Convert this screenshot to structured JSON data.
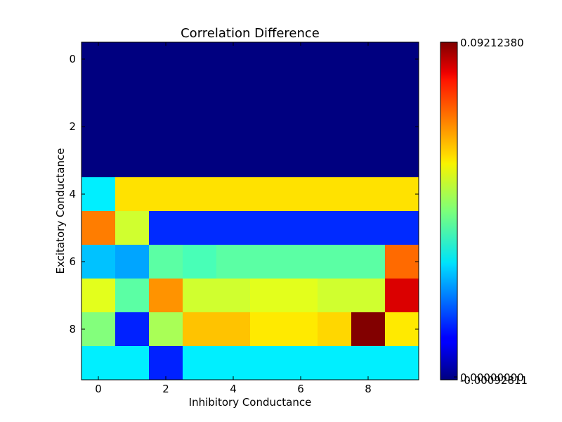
{
  "chart_data": {
    "type": "heatmap",
    "title": "Correlation Difference",
    "xlabel": "Inhibitory Conductance",
    "ylabel": "Excitatory Conductance",
    "x_ticks": [
      0,
      2,
      4,
      6,
      8
    ],
    "y_ticks": [
      0,
      2,
      4,
      6,
      8
    ],
    "n_rows": 10,
    "n_cols": 10,
    "colormap": "jet",
    "colorbar_min": -0.00092811,
    "colorbar_max": 0.0921238,
    "colorbar_labels": {
      "max": "0.09212380",
      "zero": "0.00000000",
      "min": "-0.00092811"
    },
    "values": [
      [
        -0.0009,
        -0.0009,
        -0.0009,
        -0.0009,
        -0.0009,
        -0.0009,
        -0.0009,
        -0.0009,
        -0.0009,
        -0.0009
      ],
      [
        -0.0009,
        -0.0009,
        -0.0009,
        -0.0009,
        -0.0009,
        -0.0009,
        -0.0009,
        -0.0009,
        -0.0009,
        -0.0009
      ],
      [
        -0.0009,
        -0.0009,
        -0.0009,
        -0.0009,
        -0.0009,
        -0.0009,
        -0.0009,
        -0.0009,
        -0.0009,
        -0.0009
      ],
      [
        -0.0009,
        -0.0009,
        -0.0009,
        -0.0009,
        -0.0009,
        -0.0009,
        -0.0009,
        -0.0009,
        -0.0009,
        -0.0009
      ],
      [
        0.0325,
        0.0599,
        0.0599,
        0.0599,
        0.0599,
        0.0599,
        0.0599,
        0.0599,
        0.0599,
        0.0599
      ],
      [
        0.0691,
        0.0529,
        0.0145,
        0.0145,
        0.0145,
        0.0145,
        0.0145,
        0.0145,
        0.0145,
        0.0145
      ],
      [
        0.0284,
        0.0258,
        0.0423,
        0.0405,
        0.0423,
        0.0423,
        0.0423,
        0.0423,
        0.0423,
        0.0708
      ],
      [
        0.0547,
        0.0423,
        0.0671,
        0.0529,
        0.0529,
        0.0547,
        0.0547,
        0.0529,
        0.0529,
        0.0838
      ],
      [
        0.0459,
        0.0137,
        0.0494,
        0.0627,
        0.0627,
        0.0591,
        0.0591,
        0.0609,
        0.0919,
        0.0591
      ],
      [
        0.0325,
        0.0325,
        0.0137,
        0.0325,
        0.0325,
        0.0325,
        0.0325,
        0.0325,
        0.0325,
        0.0325
      ]
    ]
  }
}
